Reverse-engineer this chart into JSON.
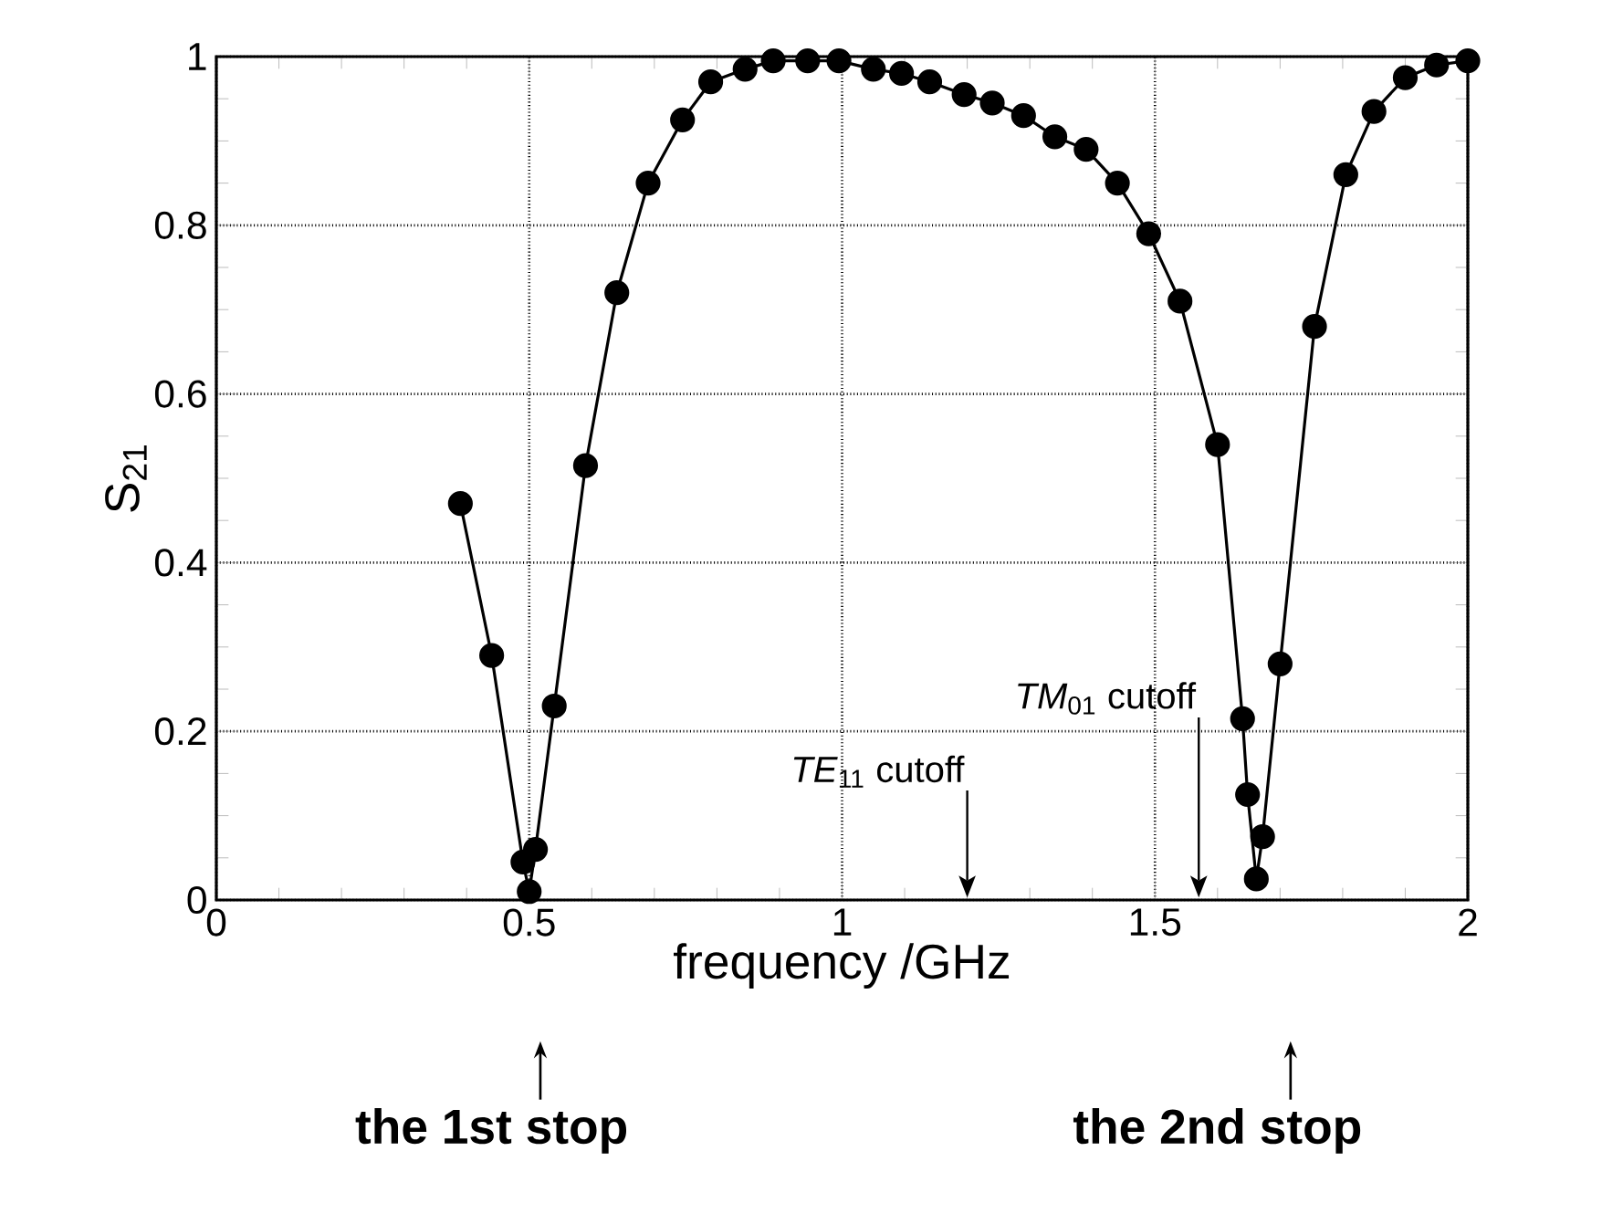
{
  "chart_data": {
    "type": "line",
    "xlabel": "frequency /GHz",
    "ylabel": "S$_{21}$",
    "xlim": [
      0,
      2
    ],
    "ylim": [
      0,
      1
    ],
    "xticks": [
      0,
      0.5,
      1,
      1.5,
      2
    ],
    "yticks": [
      0,
      0.2,
      0.4,
      0.6,
      0.8,
      1
    ],
    "grid": true,
    "marker": "circle",
    "line_style": "solid",
    "series": [
      {
        "color": "#000000",
        "x": [
          0.39,
          0.44,
          0.49,
          0.5,
          0.51,
          0.54,
          0.59,
          0.64,
          0.69,
          0.745,
          0.79,
          0.845,
          0.89,
          0.945,
          0.995,
          1.05,
          1.095,
          1.14,
          1.195,
          1.24,
          1.29,
          1.34,
          1.39,
          1.44,
          1.49,
          1.54,
          1.6,
          1.64,
          1.648,
          1.662,
          1.672,
          1.7,
          1.755,
          1.805,
          1.85,
          1.9,
          1.95,
          2.0
        ],
        "values": [
          0.47,
          0.29,
          0.045,
          0.01,
          0.06,
          0.23,
          0.515,
          0.72,
          0.85,
          0.925,
          0.97,
          0.985,
          0.995,
          0.995,
          0.995,
          0.985,
          0.98,
          0.97,
          0.955,
          0.945,
          0.93,
          0.905,
          0.89,
          0.85,
          0.79,
          0.71,
          0.54,
          0.215,
          0.125,
          0.025,
          0.075,
          0.28,
          0.68,
          0.86,
          0.935,
          0.975,
          0.99,
          0.995
        ]
      }
    ],
    "ref_lines": [
      {
        "axis": "x",
        "value": 1.2,
        "label": "*TE*$_{11}$ cutoff"
      },
      {
        "axis": "x",
        "value": 1.57,
        "label": "*TM*$_{01}$ cutoff"
      }
    ],
    "annotations": [
      "the 1st stop",
      "the 2nd stop"
    ]
  }
}
